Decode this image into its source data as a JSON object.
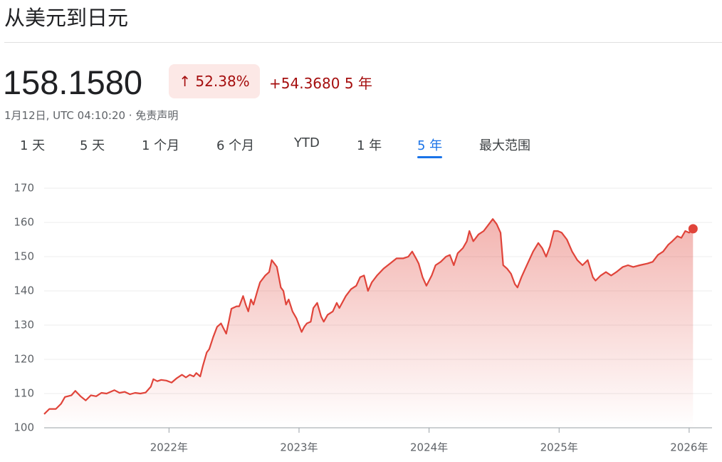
{
  "header": {
    "title": "从美元到日元",
    "price": "158.1580",
    "change_pct": "52.38%",
    "change_abs": "+54.3680",
    "period": "5 年",
    "timestamp": "1月12日, UTC 04:10:20 · 免责声明"
  },
  "tabs": [
    "1 天",
    "5 天",
    "1 个月",
    "6 个月",
    "YTD",
    "1 年",
    "5 年",
    "最大范围"
  ],
  "active_tab": 6,
  "chart_data": {
    "type": "line",
    "color": "#e0443a",
    "grid": true,
    "xlim": [
      2021.04,
      2026.05
    ],
    "ylim": [
      100,
      170
    ],
    "yticks": [
      100,
      110,
      120,
      130,
      140,
      150,
      160,
      170
    ],
    "xticks": [
      {
        "value": 2022,
        "label": "2022年"
      },
      {
        "value": 2023,
        "label": "2023年"
      },
      {
        "value": 2024,
        "label": "2024年"
      },
      {
        "value": 2025,
        "label": "2025年"
      },
      {
        "value": 2026,
        "label": "2026年"
      }
    ],
    "x": [
      2021.04,
      2021.08,
      2021.13,
      2021.17,
      2021.2,
      2021.25,
      2021.28,
      2021.32,
      2021.36,
      2021.4,
      2021.44,
      2021.48,
      2021.52,
      2021.58,
      2021.62,
      2021.66,
      2021.7,
      2021.74,
      2021.78,
      2021.82,
      2021.86,
      2021.88,
      2021.91,
      2021.94,
      2021.98,
      2022.02,
      2022.06,
      2022.1,
      2022.13,
      2022.16,
      2022.19,
      2022.21,
      2022.24,
      2022.26,
      2022.29,
      2022.31,
      2022.34,
      2022.37,
      2022.4,
      2022.42,
      2022.44,
      2022.46,
      2022.48,
      2022.52,
      2022.54,
      2022.57,
      2022.59,
      2022.61,
      2022.63,
      2022.65,
      2022.68,
      2022.7,
      2022.74,
      2022.77,
      2022.79,
      2022.81,
      2022.83,
      2022.86,
      2022.88,
      2022.9,
      2022.92,
      2022.95,
      2022.98,
      2023.02,
      2023.04,
      2023.06,
      2023.09,
      2023.11,
      2023.14,
      2023.17,
      2023.19,
      2023.22,
      2023.26,
      2023.29,
      2023.31,
      2023.36,
      2023.4,
      2023.44,
      2023.47,
      2023.5,
      2023.53,
      2023.56,
      2023.6,
      2023.65,
      2023.7,
      2023.75,
      2023.8,
      2023.84,
      2023.87,
      2023.9,
      2023.92,
      2023.95,
      2023.98,
      2024.02,
      2024.05,
      2024.09,
      2024.13,
      2024.16,
      2024.19,
      2024.22,
      2024.26,
      2024.29,
      2024.31,
      2024.34,
      2024.38,
      2024.42,
      2024.46,
      2024.49,
      2024.52,
      2024.55,
      2024.57,
      2024.6,
      2024.63,
      2024.66,
      2024.68,
      2024.71,
      2024.74,
      2024.77,
      2024.8,
      2024.84,
      2024.87,
      2024.9,
      2024.93,
      2024.96,
      2024.99,
      2025.02,
      2025.06,
      2025.1,
      2025.14,
      2025.18,
      2025.22,
      2025.26,
      2025.28,
      2025.32,
      2025.36,
      2025.4,
      2025.44,
      2025.49,
      2025.53,
      2025.57,
      2025.62,
      2025.68,
      2025.72,
      2025.76,
      2025.8,
      2025.84,
      2025.87,
      2025.91,
      2025.94,
      2025.97,
      2026.0,
      2026.03
    ],
    "values": [
      104.0,
      105.5,
      105.5,
      107.0,
      109.0,
      109.5,
      110.8,
      109.2,
      108.0,
      109.5,
      109.2,
      110.2,
      110.0,
      111.0,
      110.2,
      110.5,
      109.8,
      110.2,
      110.0,
      110.3,
      112.0,
      114.2,
      113.6,
      114.0,
      113.8,
      113.2,
      114.5,
      115.5,
      114.7,
      115.5,
      115.0,
      116.0,
      115.0,
      118.0,
      122.0,
      123.0,
      126.5,
      129.5,
      130.5,
      129.0,
      127.5,
      131.0,
      134.8,
      135.5,
      135.5,
      138.5,
      136.0,
      134.0,
      137.5,
      136.0,
      140.0,
      142.5,
      144.5,
      145.5,
      149.0,
      148.0,
      147.0,
      141.0,
      140.0,
      136.0,
      137.5,
      134.0,
      132.0,
      128.0,
      129.5,
      130.5,
      131.0,
      135.0,
      136.5,
      132.5,
      131.0,
      133.0,
      134.0,
      136.5,
      135.0,
      138.5,
      140.5,
      141.5,
      144.0,
      144.5,
      140.0,
      142.5,
      144.5,
      146.5,
      148.0,
      149.5,
      149.5,
      150.0,
      151.5,
      149.5,
      148.0,
      144.0,
      141.5,
      144.5,
      147.5,
      148.5,
      150.0,
      150.5,
      147.5,
      151.0,
      152.5,
      154.5,
      157.5,
      154.5,
      156.5,
      157.5,
      159.5,
      161.0,
      159.5,
      157.0,
      147.5,
      146.5,
      145.0,
      142.0,
      141.0,
      144.0,
      146.5,
      149.0,
      151.5,
      154.0,
      152.5,
      150.0,
      153.0,
      157.5,
      157.5,
      157.0,
      155.0,
      151.5,
      149.0,
      147.5,
      149.0,
      144.0,
      143.0,
      144.5,
      145.5,
      144.5,
      145.5,
      147.0,
      147.5,
      147.0,
      147.5,
      148.0,
      148.5,
      150.5,
      151.5,
      153.5,
      154.5,
      156.0,
      155.5,
      157.5,
      157.0,
      158.158
    ]
  }
}
